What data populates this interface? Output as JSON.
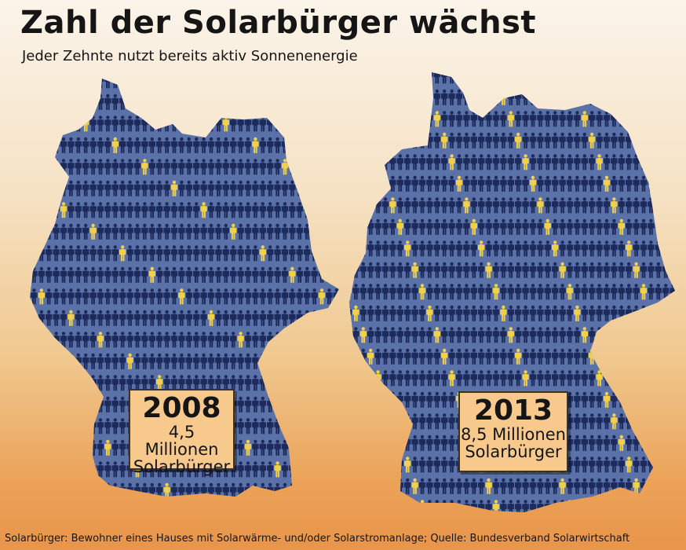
{
  "header": {
    "title": "Zahl der Solarbürger wächst",
    "subtitle": "Jeder Zehnte nutzt bereits aktiv Sonnenenergie"
  },
  "chart_data": {
    "type": "pictogram",
    "title": "Zahl der Solarbürger wächst",
    "subtitle": "Jeder Zehnte nutzt bereits aktiv Sonnenenergie",
    "series": [
      {
        "year": "2008",
        "value_label": "4,5 Millionen",
        "unit_label": "Solarbürger",
        "value_millions": 4.5
      },
      {
        "year": "2013",
        "value_label": "8,5 Millionen",
        "unit_label": "Solarbürger",
        "value_millions": 8.5
      }
    ]
  },
  "footer": {
    "note": "Solarbürger: Bewohner eines Hauses mit Solarwärme- und/oder Solarstromanlage; Quelle: Bundesverband Solarwirtschaft"
  },
  "colors": {
    "map_fill": "#5b72a8",
    "person_blue": "#1d2a5c",
    "person_yellow": "#f2d04a",
    "box_fill": "#f7c98c"
  }
}
